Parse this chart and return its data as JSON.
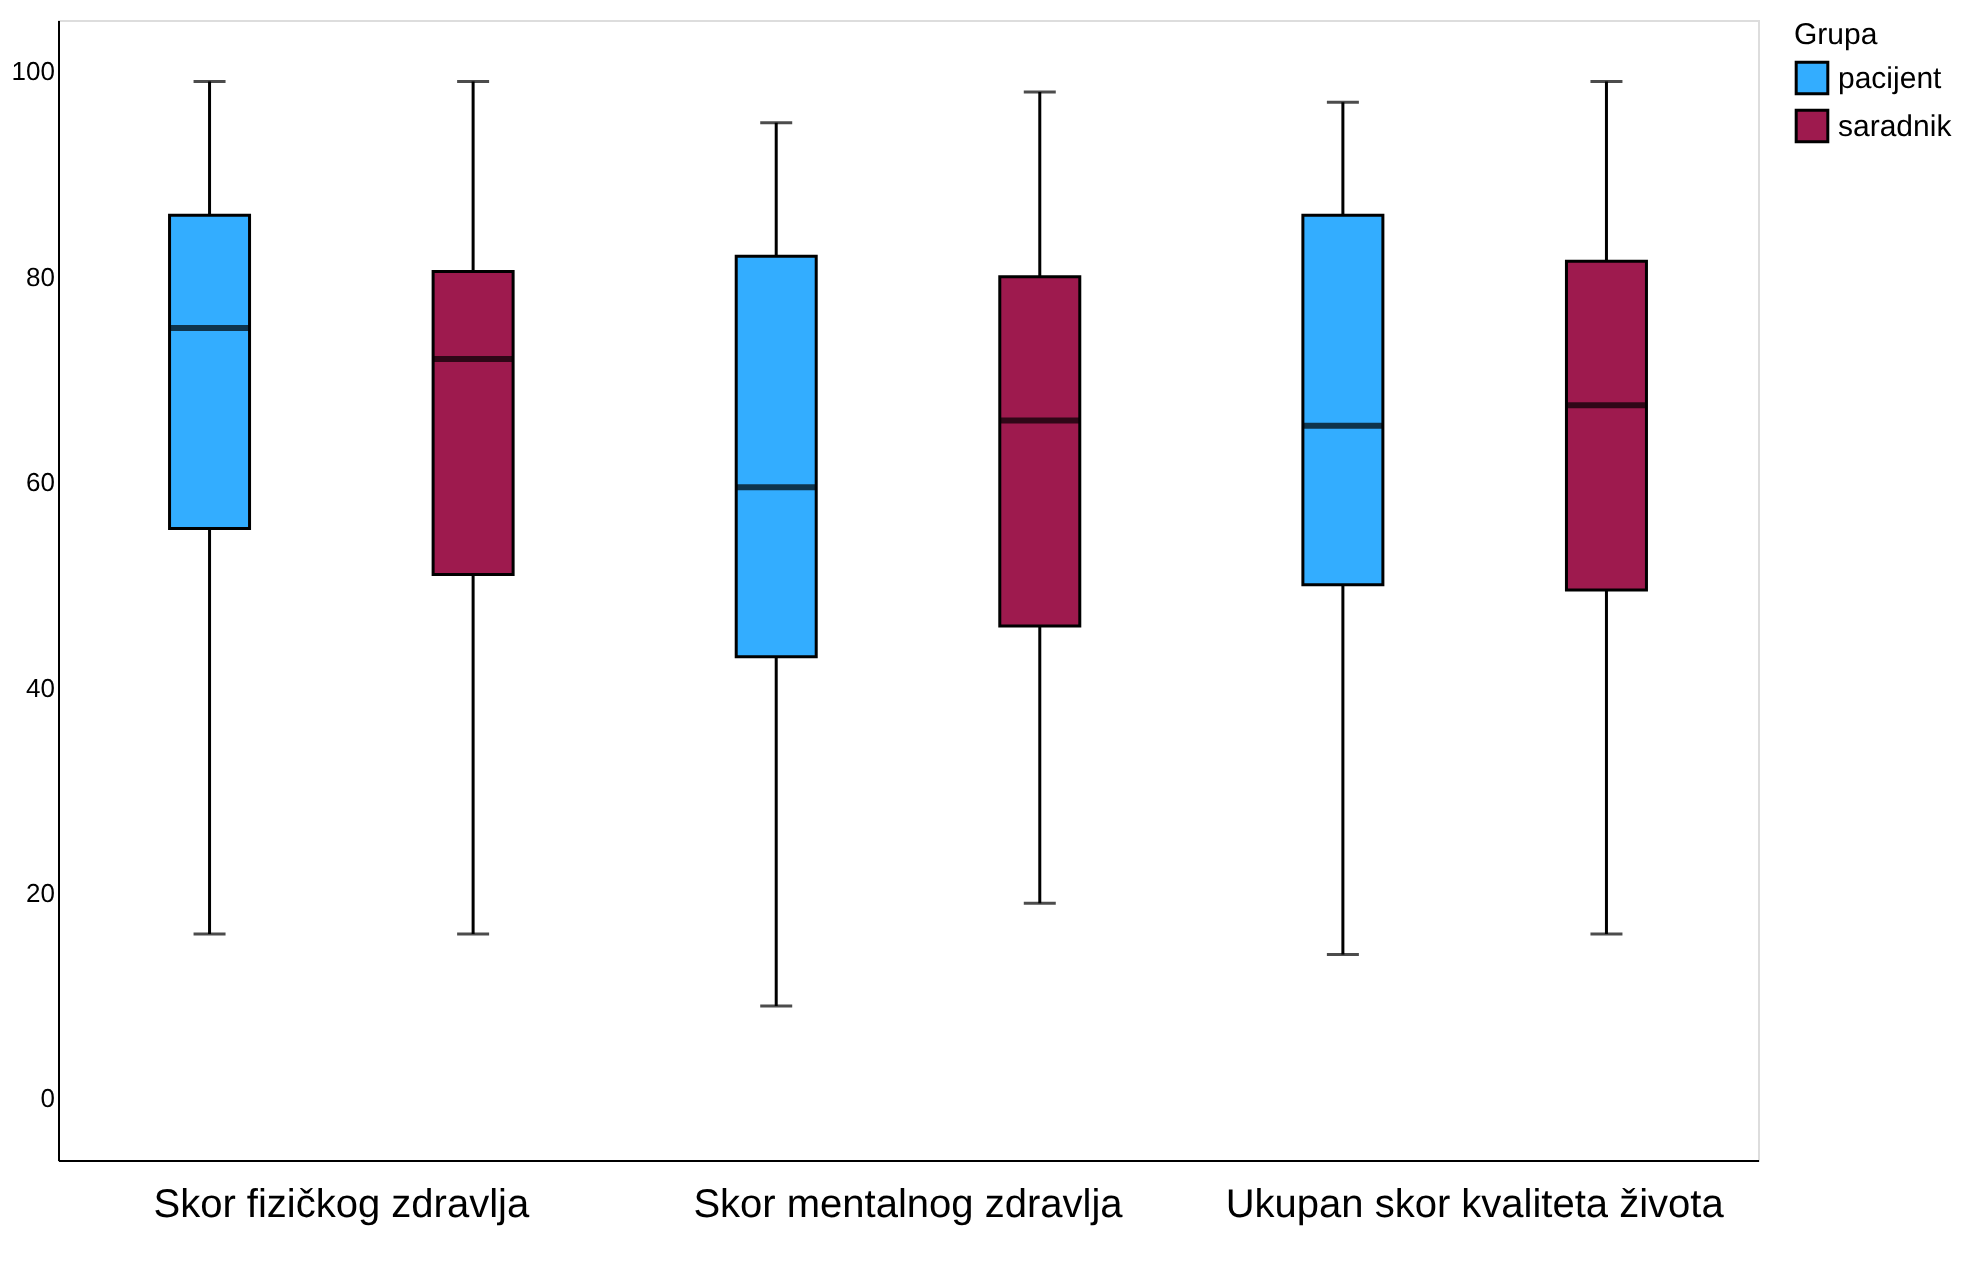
{
  "chart_data": {
    "type": "box",
    "categories": [
      "Skor fizičkog zdravlja",
      "Skor mentalnog zdravlja",
      "Ukupan skor kvaliteta života"
    ],
    "series": [
      {
        "name": "pacijent",
        "color": "#33adff",
        "boxes": [
          {
            "low": 16,
            "q1": 55.5,
            "median": 75,
            "q3": 86,
            "high": 99
          },
          {
            "low": 9,
            "q1": 43,
            "median": 59.5,
            "q3": 82,
            "high": 95
          },
          {
            "low": 14,
            "q1": 50,
            "median": 65.5,
            "q3": 86,
            "high": 97
          }
        ]
      },
      {
        "name": "saradnik",
        "color": "#9e1a4e",
        "boxes": [
          {
            "low": 16,
            "q1": 51,
            "median": 72,
            "q3": 80.5,
            "high": 99
          },
          {
            "low": 19,
            "q1": 46,
            "median": 66,
            "q3": 80,
            "high": 98
          },
          {
            "low": 16,
            "q1": 49.5,
            "median": 67.5,
            "q3": 81.5,
            "high": 99
          }
        ]
      }
    ],
    "legend_title": "Grupa",
    "legend": "top right",
    "ylim": [
      -6,
      105
    ],
    "yticks": [
      0,
      20,
      40,
      60,
      80,
      100
    ],
    "grid": false
  }
}
